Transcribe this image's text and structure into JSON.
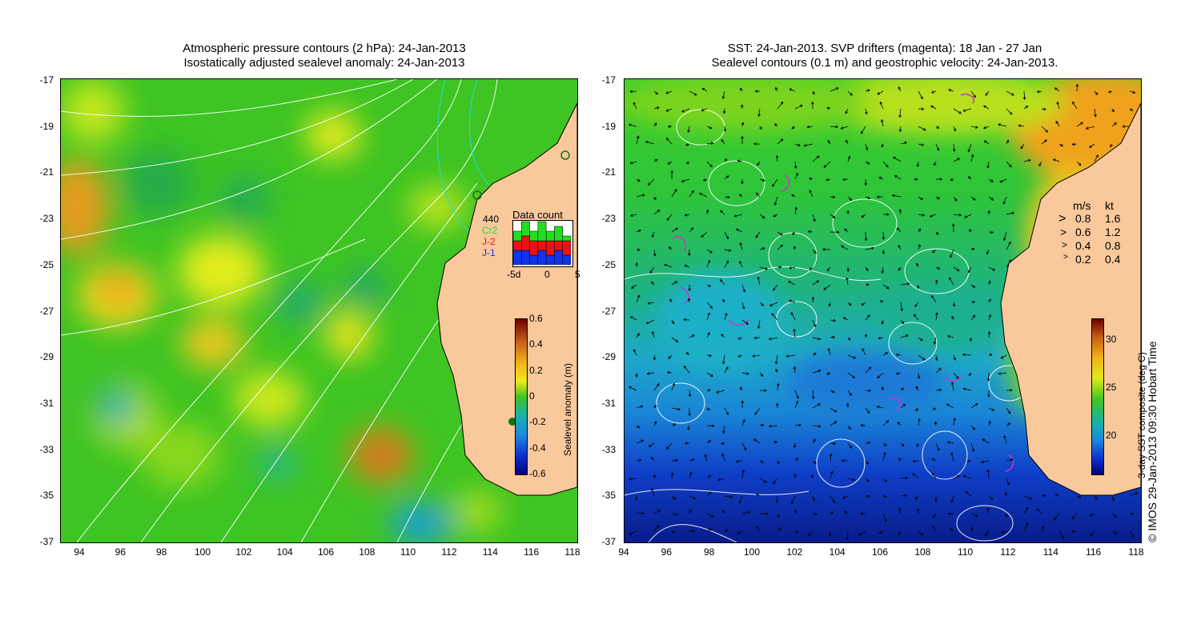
{
  "left_panel": {
    "title_line1": "Atmospheric pressure contours (2 hPa): 24-Jan-2013",
    "title_line2": "Isostatically adjusted sealevel anomaly: 24-Jan-2013",
    "y_ticks": [
      "-17",
      "-19",
      "-21",
      "-23",
      "-25",
      "-27",
      "-29",
      "-31",
      "-33",
      "-35",
      "-37"
    ],
    "x_ticks": [
      "94",
      "96",
      "98",
      "100",
      "102",
      "104",
      "106",
      "108",
      "110",
      "112",
      "114",
      "116",
      "118"
    ],
    "colorbar": {
      "title": "Sealevel anomaly (m)",
      "labels": [
        "0.6",
        "0.4",
        "0.2",
        "0",
        "-0.2",
        "-0.4",
        "-0.6"
      ]
    },
    "data_count": {
      "title": "Data count",
      "count": "440",
      "missions": [
        "Cr2",
        "J-2",
        "J-1"
      ],
      "mission_colors": [
        "#22dd22",
        "#ee1111",
        "#1133ee"
      ],
      "x_labels": [
        "-5d",
        "0",
        "5"
      ],
      "bars": [
        {
          "j1": 3,
          "j2": 2,
          "cr2": 2
        },
        {
          "j1": 3,
          "j2": 3,
          "cr2": 3
        },
        {
          "j1": 2,
          "j2": 3,
          "cr2": 2
        },
        {
          "j1": 3,
          "j2": 2,
          "cr2": 4
        },
        {
          "j1": 2,
          "j2": 3,
          "cr2": 2
        },
        {
          "j1": 3,
          "j2": 2,
          "cr2": 3
        },
        {
          "j1": 2,
          "j2": 3,
          "cr2": 1
        }
      ]
    }
  },
  "right_panel": {
    "title_line1": "SST: 24-Jan-2013. SVP drifters (magenta): 18 Jan - 27 Jan",
    "title_line2": "Sealevel contours (0.1 m) and geostrophic velocity: 24-Jan-2013.",
    "y_ticks": [
      "-17",
      "-19",
      "-21",
      "-23",
      "-25",
      "-27",
      "-29",
      "-31",
      "-33",
      "-35",
      "-37"
    ],
    "x_ticks": [
      "94",
      "96",
      "98",
      "100",
      "102",
      "104",
      "106",
      "108",
      "110",
      "112",
      "114",
      "116",
      "118"
    ],
    "colorbar": {
      "title": "3-day SST composite (deg C)",
      "labels": [
        "30",
        "25",
        "20"
      ]
    },
    "velocity_legend": {
      "header_ms": "m/s",
      "header_kt": "kt",
      "rows": [
        {
          "ms": "0.8",
          "kt": "1.6"
        },
        {
          "ms": "0.6",
          "kt": "1.2"
        },
        {
          "ms": "0.4",
          "kt": "0.8"
        },
        {
          "ms": "0.2",
          "kt": "0.4"
        }
      ]
    },
    "credit": "© IMOS 29-Jan-2013 09:30 Hobart Time"
  },
  "colors": {
    "land": "#f9c89b",
    "ocean_mid": "#33cc22",
    "coast": "#000000",
    "contour": "#ffffff",
    "drifter": "#cc33cc"
  }
}
